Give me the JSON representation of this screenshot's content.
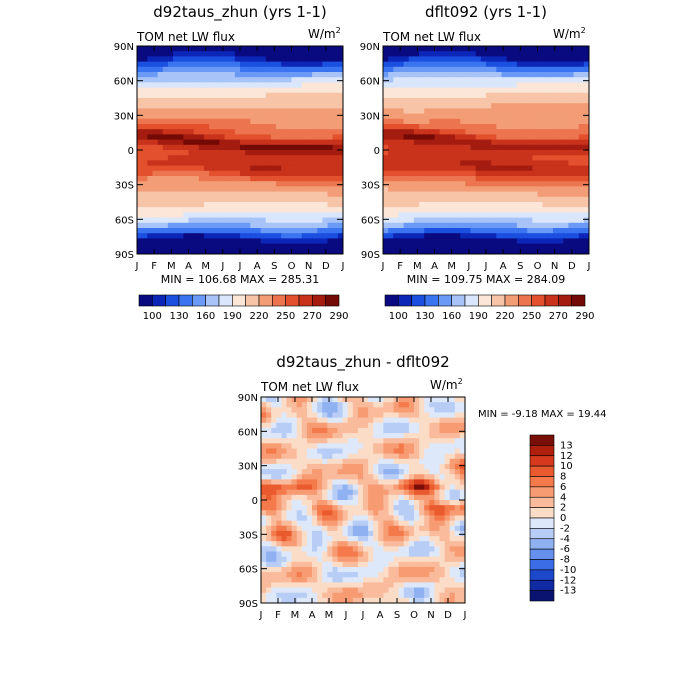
{
  "chart_data": [
    {
      "type": "heatmap",
      "id": "p1",
      "title": "d92taus_zhun (yrs 1-1)",
      "subtitle": "TOM net LW flux",
      "units_base": "W/m",
      "units_sup": "2",
      "x_ticks": [
        "J",
        "F",
        "M",
        "A",
        "M",
        "J",
        "J",
        "A",
        "S",
        "O",
        "N",
        "D",
        "J"
      ],
      "y_ticks": [
        "90N",
        "60N",
        "30N",
        "0",
        "30S",
        "60S",
        "90S"
      ],
      "ylim": [
        -90,
        90
      ],
      "min_max_text": "MIN = 106.68  MAX = 285.31",
      "colorbar_labels": [
        "100",
        "130",
        "160",
        "190",
        "220",
        "250",
        "270",
        "290"
      ],
      "variant": 0
    },
    {
      "type": "heatmap",
      "id": "p2",
      "title": "dflt092 (yrs 1-1)",
      "subtitle": "TOM net LW flux",
      "units_base": "W/m",
      "units_sup": "2",
      "x_ticks": [
        "J",
        "F",
        "M",
        "A",
        "M",
        "J",
        "J",
        "A",
        "S",
        "O",
        "N",
        "D",
        "J"
      ],
      "y_ticks": [
        "90N",
        "60N",
        "30N",
        "0",
        "30S",
        "60S",
        "90S"
      ],
      "ylim": [
        -90,
        90
      ],
      "min_max_text": "MIN = 109.75  MAX = 284.09",
      "colorbar_labels": [
        "100",
        "130",
        "160",
        "190",
        "220",
        "250",
        "270",
        "290"
      ],
      "variant": 1
    },
    {
      "type": "heatmap",
      "id": "p3",
      "title": "d92taus_zhun - dflt092",
      "subtitle": "TOM net LW flux",
      "units_base": "W/m",
      "units_sup": "2",
      "x_ticks": [
        "J",
        "F",
        "M",
        "A",
        "M",
        "J",
        "J",
        "A",
        "S",
        "O",
        "N",
        "D",
        "J"
      ],
      "y_ticks": [
        "90N",
        "60N",
        "30N",
        "0",
        "30S",
        "60S",
        "90S"
      ],
      "ylim": [
        -90,
        90
      ],
      "min_max_text": "MIN =  -9.18  MAX =  19.44",
      "colorbar_labels": [
        "13",
        "12",
        "10",
        "8",
        "6",
        "4",
        "2",
        "0",
        "-2",
        "-4",
        "-6",
        "-8",
        "-10",
        "-12",
        "-13"
      ]
    }
  ],
  "colors": {
    "abs_palette": [
      "#0a0a80",
      "#0c26b8",
      "#1a4fe0",
      "#3a74f0",
      "#6a9af5",
      "#a7c3f7",
      "#d9e6fb",
      "#fbe6d8",
      "#f8c4a8",
      "#f39d77",
      "#ec744e",
      "#e2502d",
      "#c9321b",
      "#a41c10",
      "#730a05"
    ],
    "diff_palette": [
      "#7a0e08",
      "#b0200f",
      "#d43a1b",
      "#ea5a2f",
      "#f47a4c",
      "#f79b73",
      "#f9bb9c",
      "#fbdcc7",
      "#dde8fb",
      "#b8cdf5",
      "#90b1f1",
      "#6690ee",
      "#3b6de6",
      "#1d48cc",
      "#0f2aa3",
      "#0a1470"
    ]
  }
}
